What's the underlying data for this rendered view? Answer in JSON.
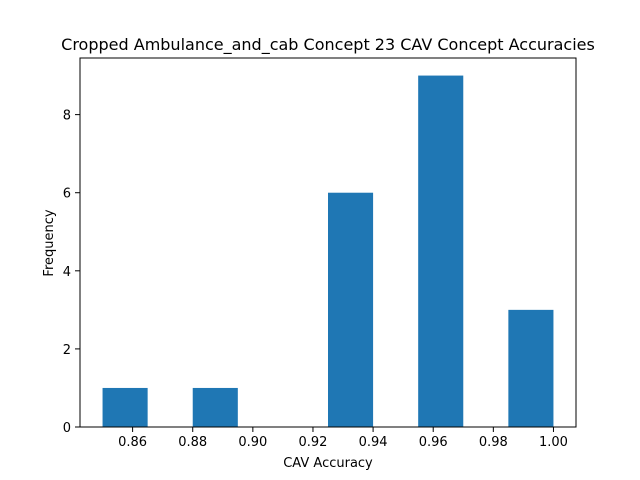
{
  "chart_data": {
    "type": "bar",
    "title": "Cropped Ambulance_and_cab Concept 23 CAV Concept Accuracies",
    "xlabel": "CAV Accuracy",
    "ylabel": "Frequency",
    "bar_color": "#1f77b4",
    "xlim": [
      0.8425,
      1.0075
    ],
    "ylim": [
      0,
      9.45
    ],
    "xticks": [
      0.86,
      0.88,
      0.9,
      0.92,
      0.94,
      0.96,
      0.98,
      1.0
    ],
    "xtick_labels": [
      "0.86",
      "0.88",
      "0.90",
      "0.92",
      "0.94",
      "0.96",
      "0.98",
      "1.00"
    ],
    "yticks": [
      0,
      2,
      4,
      6,
      8
    ],
    "ytick_labels": [
      "0",
      "2",
      "4",
      "6",
      "8"
    ],
    "bins": [
      {
        "x0": 0.85,
        "x1": 0.865,
        "value": 1
      },
      {
        "x0": 0.865,
        "x1": 0.88,
        "value": 0
      },
      {
        "x0": 0.88,
        "x1": 0.895,
        "value": 1
      },
      {
        "x0": 0.895,
        "x1": 0.91,
        "value": 0
      },
      {
        "x0": 0.91,
        "x1": 0.925,
        "value": 0
      },
      {
        "x0": 0.925,
        "x1": 0.94,
        "value": 6
      },
      {
        "x0": 0.94,
        "x1": 0.955,
        "value": 0
      },
      {
        "x0": 0.955,
        "x1": 0.97,
        "value": 9
      },
      {
        "x0": 0.97,
        "x1": 0.985,
        "value": 0
      },
      {
        "x0": 0.985,
        "x1": 1.0,
        "value": 3
      }
    ],
    "grid": false,
    "legend": "none"
  }
}
